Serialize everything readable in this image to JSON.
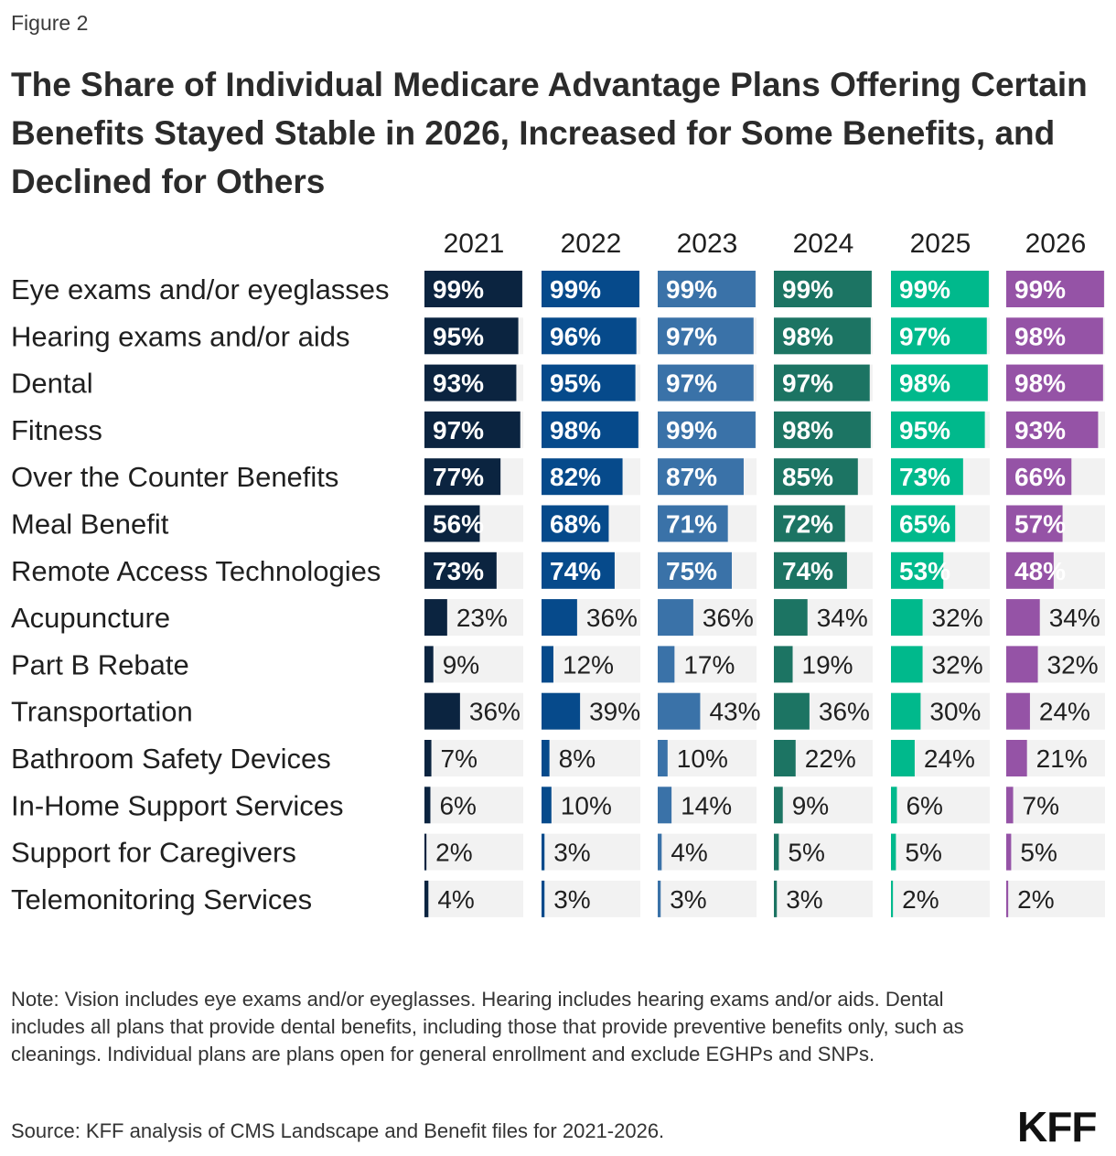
{
  "figure_label": "Figure 2",
  "title": "The Share of Individual Medicare Advantage Plans Offering Certain Benefits Stayed Stable in 2026, Increased for Some Benefits, and Declined for Others",
  "note": "Note: Vision includes eye exams and/or eyeglasses. Hearing includes hearing exams and/or aids. Dental includes all plans that provide dental benefits, including those that provide preventive benefits only, such as cleanings. Individual plans are plans open for general enrollment and exclude EGHPs and SNPs.",
  "source": "Source: KFF analysis of CMS Landscape and Benefit files for 2021-2026.",
  "logo": "KFF",
  "chart_data": {
    "type": "bar",
    "orientation": "horizontal",
    "layout": "small-multiples",
    "value_unit": "%",
    "xlim": [
      0,
      100
    ],
    "title": "The Share of Individual Medicare Advantage Plans Offering Certain Benefits Stayed Stable in 2026, Increased for Some Benefits, and Declined for Others",
    "categories": [
      "Eye exams and/or eyeglasses",
      "Hearing exams and/or aids",
      "Dental",
      "Fitness",
      "Over the Counter Benefits",
      "Meal Benefit",
      "Remote Access Technologies",
      "Acupuncture",
      "Part B Rebate",
      "Transportation",
      "Bathroom Safety Devices",
      "In-Home Support Services",
      "Support for Caregivers",
      "Telemonitoring Services"
    ],
    "series": [
      {
        "name": "2021",
        "color": "#0b2440",
        "values": [
          99,
          95,
          93,
          97,
          77,
          56,
          73,
          23,
          9,
          36,
          7,
          6,
          2,
          4
        ]
      },
      {
        "name": "2022",
        "color": "#064a8b",
        "values": [
          99,
          96,
          95,
          98,
          82,
          68,
          74,
          36,
          12,
          39,
          8,
          10,
          3,
          3
        ]
      },
      {
        "name": "2023",
        "color": "#3a72a8",
        "values": [
          99,
          97,
          97,
          99,
          87,
          71,
          75,
          36,
          17,
          43,
          10,
          14,
          4,
          3
        ]
      },
      {
        "name": "2024",
        "color": "#1c7463",
        "values": [
          99,
          98,
          97,
          98,
          85,
          72,
          74,
          34,
          19,
          36,
          22,
          9,
          5,
          3
        ]
      },
      {
        "name": "2025",
        "color": "#00b98c",
        "values": [
          99,
          97,
          98,
          95,
          73,
          65,
          53,
          32,
          32,
          30,
          24,
          6,
          5,
          2
        ]
      },
      {
        "name": "2026",
        "color": "#9553a6",
        "values": [
          99,
          98,
          98,
          93,
          66,
          57,
          48,
          34,
          32,
          24,
          21,
          7,
          5,
          2
        ]
      }
    ],
    "track_color": "#f2f2f2"
  }
}
